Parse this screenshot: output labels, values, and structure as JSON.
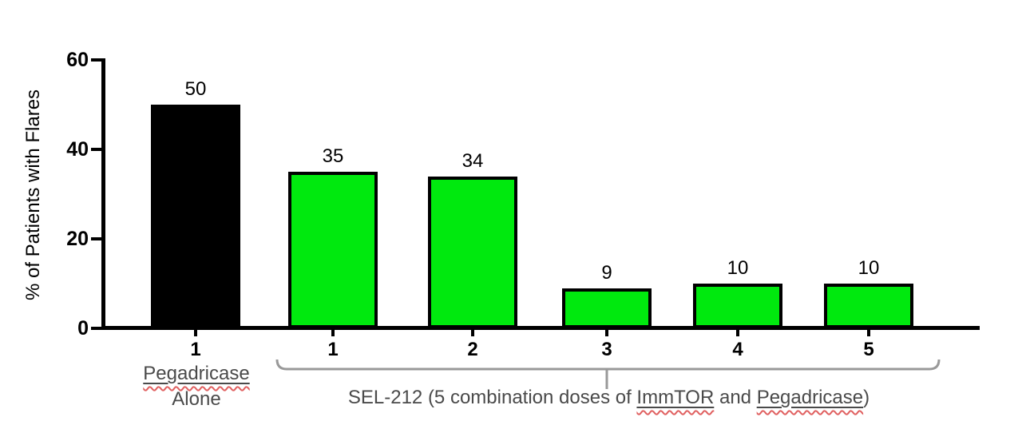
{
  "chart_data": {
    "type": "bar",
    "title": "",
    "xlabel": "",
    "ylabel": "% of Patients with Flares",
    "ylim": [
      0,
      60
    ],
    "yticks": [
      0,
      20,
      40,
      60
    ],
    "grid": false,
    "legend": null,
    "bars": [
      {
        "tick_label": "1",
        "value": 50,
        "value_label": "50",
        "color": "#000000",
        "group": "Pegadricase Alone"
      },
      {
        "tick_label": "1",
        "value": 35,
        "value_label": "35",
        "color": "#00e90e",
        "group": "SEL-212"
      },
      {
        "tick_label": "2",
        "value": 34,
        "value_label": "34",
        "color": "#00e90e",
        "group": "SEL-212"
      },
      {
        "tick_label": "3",
        "value": 9,
        "value_label": "9",
        "color": "#00e90e",
        "group": "SEL-212"
      },
      {
        "tick_label": "4",
        "value": 10,
        "value_label": "10",
        "color": "#00e90e",
        "group": "SEL-212"
      },
      {
        "tick_label": "5",
        "value": 10,
        "value_label": "10",
        "color": "#00e90e",
        "group": "SEL-212"
      }
    ],
    "group_annotations": [
      {
        "label": "Pegadricase Alone",
        "bar_indexes": [
          0
        ]
      },
      {
        "label": "SEL-212 (5 combination doses of ImmTOR and Pegadricase)",
        "bar_indexes": [
          1,
          2,
          3,
          4,
          5
        ]
      }
    ]
  },
  "annotations": {
    "group1": {
      "line1": "Pegadricase",
      "line2": "Alone"
    },
    "caption": {
      "prefix": "SEL-212 (5 combination doses of ",
      "word1": "ImmTOR",
      "mid": " and ",
      "word2": "Pegadricase",
      "suffix": ")"
    }
  },
  "colors": {
    "bar_green": "#00e90e",
    "bar_black": "#000000",
    "bar_border": "#000000",
    "axis": "#000000",
    "bracket": "#999999",
    "annotation_text": "#4a4a4a",
    "spellcheck_squiggle": "#e06060",
    "background": "#ffffff"
  }
}
